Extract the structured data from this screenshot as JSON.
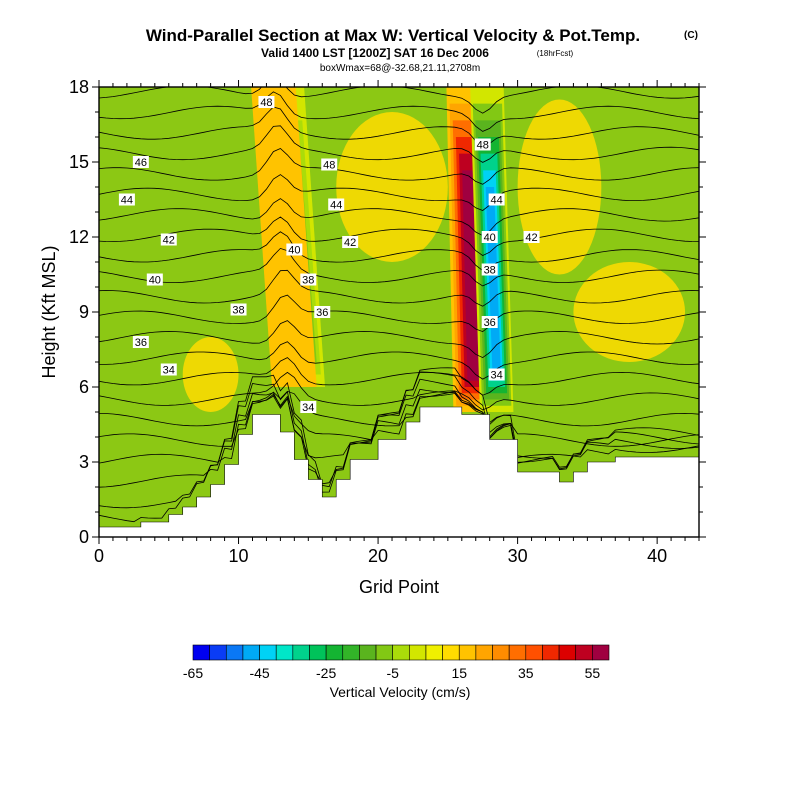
{
  "header": {
    "title": "Wind-Parallel Section at Max W: Vertical Velocity & Pot.Temp.",
    "title_tag": "(C)",
    "valid": "Valid 1400 LST [1200Z] SAT 16 Dec 2006",
    "forecast": "(18hrFcst)",
    "box_info": "boxWmax=68@-32.68,21.11,2708m"
  },
  "chart_data": {
    "type": "heatmap",
    "xlabel": "Grid Point",
    "ylabel": "Height (Kft MSL)",
    "xlim": [
      0,
      43
    ],
    "ylim": [
      0,
      18
    ],
    "x_ticks": [
      0,
      10,
      20,
      30,
      40
    ],
    "y_ticks": [
      0,
      3,
      6,
      9,
      12,
      15,
      18
    ],
    "grid": false,
    "terrain_kft": [
      [
        0,
        0.4
      ],
      [
        3,
        0.4
      ],
      [
        3,
        0.6
      ],
      [
        5,
        0.6
      ],
      [
        5,
        0.9
      ],
      [
        6,
        0.9
      ],
      [
        6,
        1.2
      ],
      [
        7,
        1.2
      ],
      [
        7,
        1.6
      ],
      [
        8,
        1.6
      ],
      [
        8,
        2.1
      ],
      [
        9,
        2.1
      ],
      [
        9,
        2.9
      ],
      [
        10,
        2.9
      ],
      [
        10,
        4.1
      ],
      [
        11,
        4.1
      ],
      [
        11,
        4.9
      ],
      [
        13,
        4.9
      ],
      [
        13,
        4.2
      ],
      [
        14,
        4.2
      ],
      [
        14,
        3.1
      ],
      [
        15,
        3.1
      ],
      [
        15,
        2.3
      ],
      [
        16,
        2.3
      ],
      [
        16,
        1.6
      ],
      [
        17,
        1.6
      ],
      [
        17,
        2.3
      ],
      [
        18,
        2.3
      ],
      [
        18,
        3.1
      ],
      [
        20,
        3.1
      ],
      [
        20,
        3.9
      ],
      [
        22,
        3.9
      ],
      [
        22,
        4.6
      ],
      [
        23,
        4.6
      ],
      [
        23,
        5.2
      ],
      [
        26,
        5.2
      ],
      [
        26,
        4.9
      ],
      [
        28,
        4.9
      ],
      [
        28,
        3.9
      ],
      [
        30,
        3.9
      ],
      [
        30,
        2.6
      ],
      [
        33,
        2.6
      ],
      [
        33,
        2.2
      ],
      [
        34,
        2.2
      ],
      [
        34,
        2.6
      ],
      [
        35,
        2.6
      ],
      [
        35,
        3.0
      ],
      [
        37,
        3.0
      ],
      [
        37,
        3.2
      ],
      [
        43,
        3.2
      ]
    ],
    "field": "vertical velocity (cm/s)",
    "max_updraft_cms": 68,
    "features": [
      {
        "kind": "updraft",
        "x_bottom": 14.0,
        "x_top": 12.5,
        "z_bottom": 6,
        "z_top": 18,
        "peak_cms": 30
      },
      {
        "kind": "downdraft",
        "x_bottom": 15.0,
        "x_top": 13.5,
        "z_bottom": 6,
        "z_top": 18,
        "peak_cms": -15
      },
      {
        "kind": "updraft",
        "x_bottom": 27.0,
        "x_top": 26.5,
        "z_bottom": 5,
        "z_top": 18,
        "peak_cms": 68
      },
      {
        "kind": "downdraft",
        "x_bottom": 28.5,
        "x_top": 27.8,
        "z_bottom": 5,
        "z_top": 18,
        "peak_cms": -55
      }
    ],
    "theta_contour_labels": [
      {
        "text": "48",
        "x": 12.0,
        "z": 17.4
      },
      {
        "text": "46",
        "x": 3.0,
        "z": 15.0
      },
      {
        "text": "44",
        "x": 2.0,
        "z": 13.5
      },
      {
        "text": "42",
        "x": 5.0,
        "z": 11.9
      },
      {
        "text": "40",
        "x": 4.0,
        "z": 10.3
      },
      {
        "text": "38",
        "x": 10.0,
        "z": 9.1
      },
      {
        "text": "36",
        "x": 3.0,
        "z": 7.8
      },
      {
        "text": "34",
        "x": 5.0,
        "z": 6.7
      },
      {
        "text": "48",
        "x": 16.5,
        "z": 14.9
      },
      {
        "text": "44",
        "x": 17.0,
        "z": 13.3
      },
      {
        "text": "42",
        "x": 18.0,
        "z": 11.8
      },
      {
        "text": "40",
        "x": 14.0,
        "z": 11.5
      },
      {
        "text": "38",
        "x": 15.0,
        "z": 10.3
      },
      {
        "text": "36",
        "x": 16.0,
        "z": 9.0
      },
      {
        "text": "34",
        "x": 15.0,
        "z": 5.2
      },
      {
        "text": "48",
        "x": 27.5,
        "z": 15.7
      },
      {
        "text": "44",
        "x": 28.5,
        "z": 13.5
      },
      {
        "text": "40",
        "x": 28.0,
        "z": 12.0
      },
      {
        "text": "42",
        "x": 31.0,
        "z": 12.0
      },
      {
        "text": "38",
        "x": 28.0,
        "z": 10.7
      },
      {
        "text": "36",
        "x": 28.0,
        "z": 8.6
      },
      {
        "text": "34",
        "x": 28.5,
        "z": 6.5
      }
    ],
    "theta_levels_C": [
      28,
      29,
      30,
      31,
      32,
      33,
      34,
      35,
      36,
      37,
      38,
      39,
      40,
      41,
      42,
      43,
      44,
      45,
      46,
      47,
      48,
      49
    ],
    "colorbar": {
      "label": "Vertical Velocity (cm/s)",
      "tick_labels": [
        "-65",
        "-45",
        "-25",
        "-5",
        "15",
        "35",
        "55"
      ],
      "colors": [
        "#0000f0",
        "#0a3cf5",
        "#0a78f5",
        "#00aaf5",
        "#00d2f5",
        "#00e6c8",
        "#00d28c",
        "#00c35a",
        "#14b432",
        "#32b428",
        "#5ab41e",
        "#82c814",
        "#aadc0a",
        "#d2e600",
        "#f0f000",
        "#ffdc00",
        "#ffc300",
        "#ffa500",
        "#ff8c00",
        "#ff6e00",
        "#ff5000",
        "#f02800",
        "#dc0000",
        "#be0020",
        "#a00040"
      ]
    }
  }
}
